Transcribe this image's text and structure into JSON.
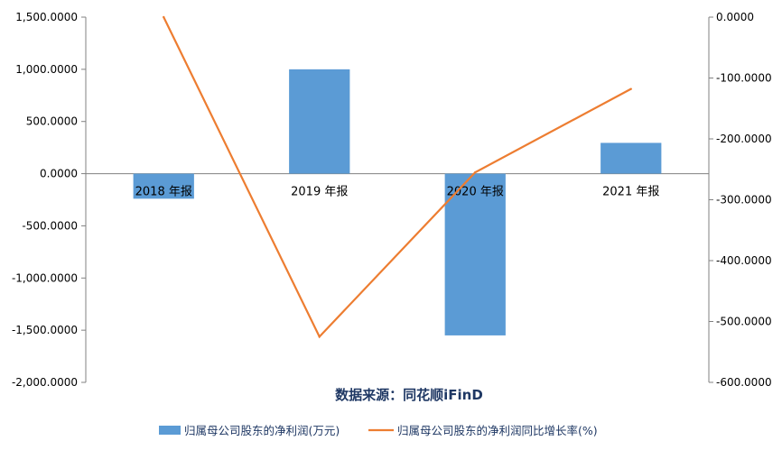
{
  "chart_data": {
    "type": "bar",
    "categories": [
      "2018 年报",
      "2019 年报",
      "2020 年报",
      "2021 年报"
    ],
    "series": [
      {
        "name": "归属母公司股东的净利润(万元)",
        "type": "bar",
        "axis": "left",
        "values": [
          -240,
          1000,
          -1550,
          295
        ]
      },
      {
        "name": "归属母公司股东的净利润同比增长率(%)",
        "type": "line",
        "axis": "right",
        "values": [
          0,
          -525,
          -255,
          -118
        ]
      }
    ],
    "y_left": {
      "ylim": [
        -2000,
        1500
      ],
      "ticks": [
        "1,500.0000",
        "1,000.0000",
        "500.0000",
        "0.0000",
        "-500.0000",
        "-1,000.0000",
        "-1,500.0000",
        "-2,000.0000"
      ]
    },
    "y_right": {
      "ylim": [
        -600,
        0
      ],
      "ticks": [
        "0.0000",
        "-100.0000",
        "-200.0000",
        "-300.0000",
        "-400.0000",
        "-500.0000",
        "-600.0000"
      ]
    },
    "source": "数据来源：同花顺iFinD",
    "grid": false,
    "legend_position": "bottom",
    "colors": {
      "bar": "#5B9BD5",
      "line": "#ED7D31",
      "axis": "#808080",
      "source": "#1F3864"
    }
  }
}
